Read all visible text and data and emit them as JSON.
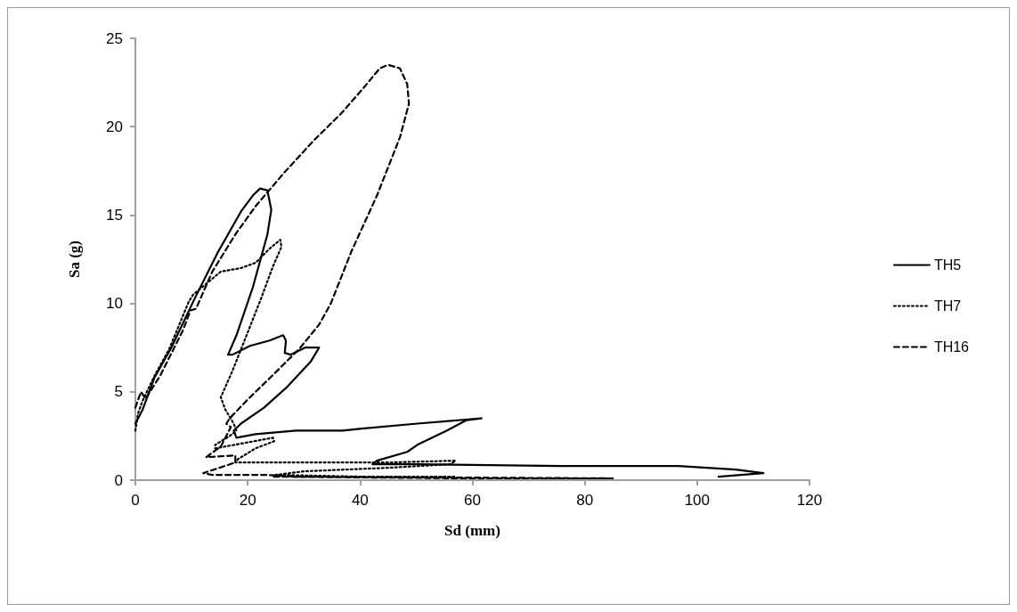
{
  "chart_data": {
    "type": "line",
    "xlabel": "Sd (mm)",
    "ylabel": "Sa (g)",
    "xlim": [
      0,
      120
    ],
    "xticks": [
      0,
      20,
      40,
      60,
      80,
      100,
      120
    ],
    "ylim": [
      0,
      25
    ],
    "yticks": [
      0,
      5,
      10,
      15,
      20,
      25
    ],
    "grid": false,
    "legend": "right",
    "marker": "none",
    "series": [
      {
        "name": "TH5",
        "color": "#000000",
        "line_style": "solid",
        "x": [
          0,
          1.3,
          3.4,
          6.4,
          10.6,
          14.7,
          18.8,
          20.9,
          22.2,
          23.5,
          24.2,
          23.5,
          20.9,
          18.0,
          16.5,
          17.3,
          20.4,
          23.9,
          26.3,
          26.8,
          26.6,
          27.6,
          30.2,
          32.7,
          31.2,
          27.1,
          22.9,
          18.8,
          17.5,
          18.0,
          21.4,
          28.6,
          36.9,
          39.9,
          50.2,
          61.6,
          59.0,
          55.4,
          50.2,
          48.4,
          43.0,
          42.2,
          50.2,
          75.9,
          96.6,
          106.9,
          111.8,
          103.8
        ],
        "values": [
          3.2,
          4.0,
          5.8,
          7.5,
          10.3,
          12.9,
          15.2,
          16.1,
          16.5,
          16.4,
          15.3,
          13.9,
          10.9,
          8.2,
          7.1,
          7.1,
          7.6,
          7.9,
          8.2,
          7.9,
          7.2,
          7.1,
          7.5,
          7.5,
          6.7,
          5.3,
          4.1,
          3.2,
          2.8,
          2.4,
          2.6,
          2.8,
          2.8,
          2.9,
          3.2,
          3.5,
          3.4,
          2.8,
          2.0,
          1.6,
          1.1,
          0.9,
          0.9,
          0.8,
          0.8,
          0.6,
          0.4,
          0.2
        ]
      },
      {
        "name": "TH7",
        "color": "#000000",
        "line_style": "dotted",
        "x": [
          0,
          0.5,
          1.3,
          3.4,
          6.0,
          9.5,
          10.3,
          13.7,
          15.2,
          18.8,
          21.4,
          23.9,
          25.8,
          26.0,
          24.5,
          22.4,
          19.8,
          17.3,
          15.5,
          15.2,
          16.0,
          17.5,
          18.0,
          16.8,
          14.2,
          14.2,
          24.5,
          24.7,
          21.4,
          18.3,
          17.8,
          30,
          45,
          57,
          56,
          45,
          30,
          25,
          40,
          57
        ],
        "values": [
          2.8,
          3.8,
          4.5,
          5.9,
          7.4,
          10.1,
          10.5,
          11.4,
          11.8,
          12.0,
          12.3,
          13.1,
          13.6,
          13.2,
          12.1,
          10.3,
          8.2,
          6.2,
          4.9,
          4.7,
          4.0,
          3.2,
          2.8,
          2.5,
          2.0,
          1.8,
          2.4,
          2.2,
          1.8,
          1.2,
          1.0,
          1.0,
          1.0,
          1.1,
          0.9,
          0.7,
          0.5,
          0.3,
          0.2,
          0.2
        ]
      },
      {
        "name": "TH16",
        "color": "#000000",
        "line_style": "dashed",
        "x": [
          0,
          1.0,
          1.8,
          4.4,
          8.5,
          9.8,
          10.8,
          11.9,
          13.7,
          17.8,
          21.4,
          26.5,
          31.7,
          36.8,
          40.9,
          43.5,
          45.0,
          47.1,
          48.4,
          48.7,
          47.1,
          43.0,
          38.4,
          34.8,
          32.7,
          29.1,
          24.0,
          19.8,
          16.8,
          16.2,
          17.0,
          15.2,
          12.6,
          17.8,
          17.8,
          12.1,
          13.6,
          22.9,
          29.1,
          85,
          60,
          24
        ],
        "values": [
          4.1,
          5.0,
          4.6,
          5.9,
          8.5,
          9.6,
          9.7,
          10.5,
          11.8,
          13.9,
          15.5,
          17.4,
          19.2,
          20.8,
          22.3,
          23.3,
          23.5,
          23.3,
          22.4,
          21.3,
          19.4,
          16.1,
          12.9,
          10.0,
          8.8,
          7.4,
          5.8,
          4.5,
          3.5,
          3.2,
          3.0,
          1.9,
          1.3,
          1.4,
          1.0,
          0.4,
          0.3,
          0.3,
          0.2,
          0.1,
          0.1,
          0.2
        ]
      }
    ]
  }
}
